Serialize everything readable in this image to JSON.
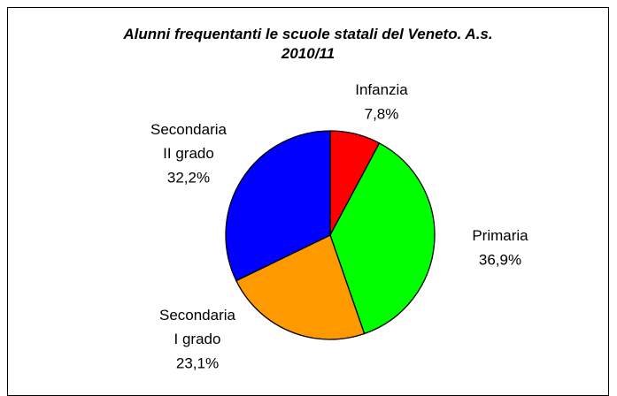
{
  "chart_data": {
    "type": "pie",
    "title": "Alunni frequentanti le scuole statali del Veneto. A.s. 2010/11",
    "categories": [
      "Infanzia",
      "Primaria",
      "Secondaria I grado",
      "Secondaria II grado"
    ],
    "values": [
      7.8,
      36.9,
      23.1,
      32.2
    ],
    "value_labels": [
      "7,8%",
      "36,9%",
      "23,1%",
      "32,2%"
    ],
    "colors": [
      "#ff0000",
      "#00ff00",
      "#ff9900",
      "#0000ff"
    ]
  }
}
